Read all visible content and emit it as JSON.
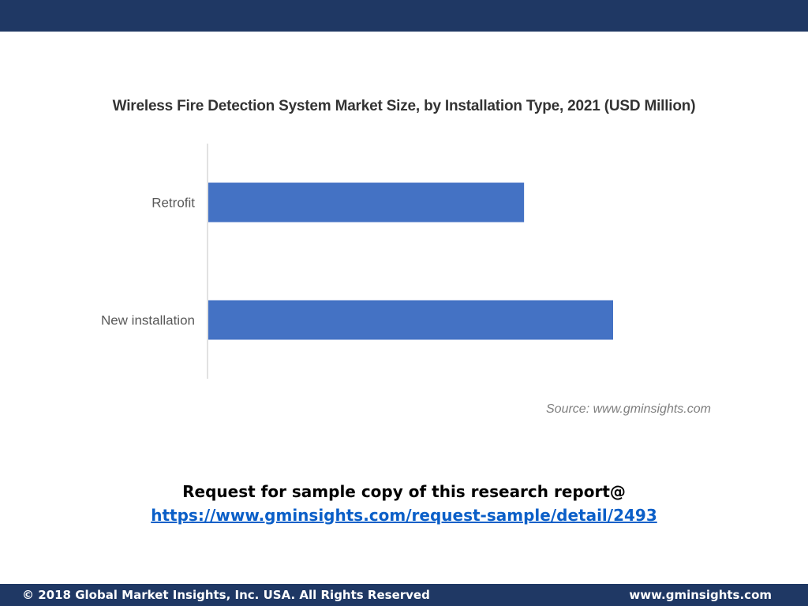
{
  "colors": {
    "header": "#1f3864",
    "bar": "#4472c4",
    "axis": "#d9d9d9",
    "link": "#0b5fc8"
  },
  "chart_data": {
    "type": "bar",
    "orientation": "horizontal",
    "title": "Wireless Fire Detection System  Market Size, by Installation  Type, 2021 (USD Million)",
    "categories": [
      "Retrofit",
      "New installation"
    ],
    "series": [
      {
        "values": [
          78,
          100
        ]
      }
    ],
    "xlim": [
      0,
      100
    ],
    "grid": false,
    "legend": "none",
    "source": "Source:  www.gminsights.com"
  },
  "cta": {
    "line1": "Request for sample copy of this research report@",
    "link": "https://www.gminsights.com/request-sample/detail/2493"
  },
  "footer": {
    "copyright": "© 2018 Global Market Insights, Inc. USA. All Rights Reserved",
    "website": "www.gminsights.com"
  }
}
